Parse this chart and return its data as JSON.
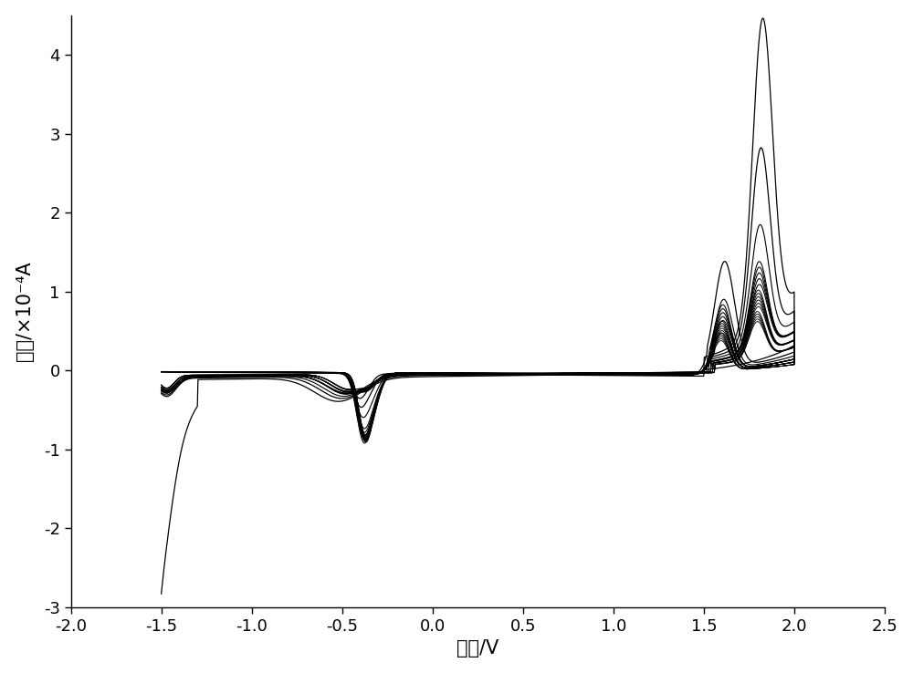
{
  "xlabel": "电势/V",
  "ylabel": "电流/×10⁻⁴A",
  "xlim": [
    -2.0,
    2.5
  ],
  "ylim": [
    -3.0,
    4.5
  ],
  "xticks": [
    -2.0,
    -1.5,
    -1.0,
    -0.5,
    0.0,
    0.5,
    1.0,
    1.5,
    2.0,
    2.5
  ],
  "yticks": [
    -3,
    -2,
    -1,
    0,
    1,
    2,
    3,
    4
  ],
  "background_color": "#ffffff",
  "line_color": "#000000",
  "linewidth": 0.9,
  "xlabel_fontsize": 15,
  "ylabel_fontsize": 15,
  "tick_fontsize": 13,
  "spine_linewidth": 1.0
}
